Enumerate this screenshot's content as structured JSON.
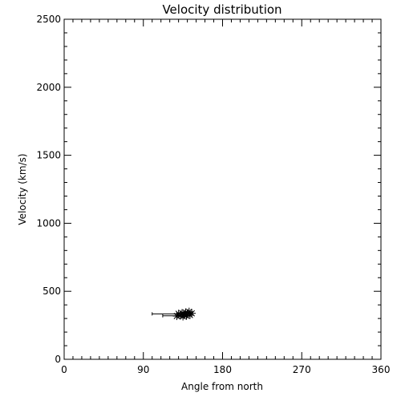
{
  "chart_data": {
    "type": "scatter",
    "title": "Velocity distribution",
    "xlabel": "Angle from north",
    "ylabel": "Velocity (km/s)",
    "xlim": [
      0,
      360
    ],
    "ylim": [
      0,
      2500
    ],
    "x_ticks": [
      0,
      90,
      180,
      270,
      360
    ],
    "x_tick_labels": [
      "0",
      "90",
      "180",
      "270",
      "360"
    ],
    "y_ticks": [
      0,
      500,
      1000,
      1500,
      2000,
      2500
    ],
    "y_tick_labels": [
      "0",
      "500",
      "1000",
      "1500",
      "2000",
      "2500"
    ],
    "grid": false,
    "marker": "asterisk",
    "points": [
      {
        "x": 128,
        "y": 318
      },
      {
        "x": 130,
        "y": 335
      },
      {
        "x": 132,
        "y": 322
      },
      {
        "x": 134,
        "y": 340
      },
      {
        "x": 135,
        "y": 315
      },
      {
        "x": 136,
        "y": 328
      },
      {
        "x": 138,
        "y": 345
      },
      {
        "x": 139,
        "y": 320
      },
      {
        "x": 140,
        "y": 333
      },
      {
        "x": 142,
        "y": 350
      },
      {
        "x": 143,
        "y": 325
      },
      {
        "x": 145,
        "y": 338
      }
    ],
    "ranges": [
      {
        "x": [
          100,
          130
        ],
        "y": 334
      },
      {
        "x": [
          112,
          130
        ],
        "y": 320
      }
    ],
    "colors": {
      "axes": "#000000",
      "marks": "#000000",
      "background": "#ffffff"
    }
  }
}
